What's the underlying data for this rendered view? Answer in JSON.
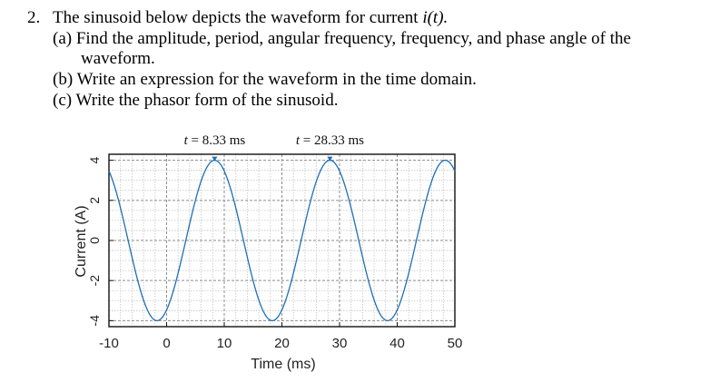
{
  "problem": {
    "number": "2.",
    "stem_text": "The sinusoid below depicts the waveform for current",
    "stem_var": "i(t).",
    "part_a_label": "(a)",
    "part_a_line1": "Find the amplitude, period, angular frequency, frequency, and phase angle of the",
    "part_a_line2": "waveform.",
    "part_b_label": "(b)",
    "part_b_text": "Write an expression for the waveform in the time domain.",
    "part_c_label": "(c)",
    "part_c_text": "Write the phasor form of the sinusoid."
  },
  "chart_data": {
    "type": "line",
    "xlabel": "Time (ms)",
    "ylabel": "Current (A)",
    "xlim": [
      -10,
      50
    ],
    "ylim": [
      -4.3,
      4.3
    ],
    "x_ticks": [
      "-10",
      "0",
      "10",
      "20",
      "30",
      "40",
      "50"
    ],
    "y_ticks": [
      "4",
      "2",
      "0",
      "-2",
      "-4"
    ],
    "grid": true,
    "series": [
      {
        "amplitude": 4,
        "period_ms": 20,
        "peak_at_ms": 8.33,
        "color": "#1f6fb3"
      }
    ],
    "annotations": [
      {
        "t_var": "t",
        "text": " = 8.33 ms",
        "x": 8.33,
        "y": 4
      },
      {
        "t_var": "t",
        "text": " = 28.33 ms",
        "x": 28.33,
        "y": 4
      }
    ]
  }
}
